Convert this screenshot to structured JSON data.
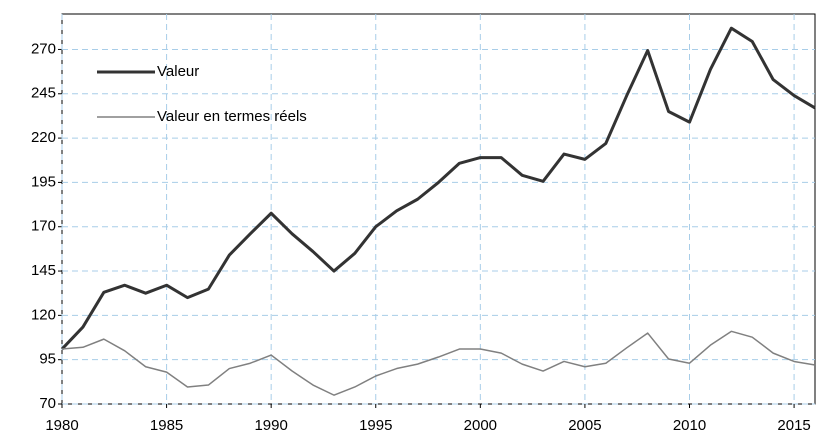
{
  "chart_data": {
    "type": "line",
    "x": [
      1980,
      1981,
      1982,
      1983,
      1984,
      1985,
      1986,
      1987,
      1988,
      1989,
      1990,
      1991,
      1992,
      1993,
      1994,
      1995,
      1996,
      1997,
      1998,
      1999,
      2000,
      2001,
      2002,
      2003,
      2004,
      2005,
      2006,
      2007,
      2008,
      2009,
      2010,
      2011,
      2012,
      2013,
      2014,
      2015,
      2016
    ],
    "series": [
      {
        "name": "Valeur",
        "color": "#333333",
        "width": 3,
        "values": [
          101,
          113.4,
          133,
          137,
          132.5,
          137,
          130,
          134.8,
          154,
          166,
          177.6,
          166,
          156,
          145,
          155,
          170,
          179,
          185.5,
          195,
          205.8,
          209,
          209,
          199,
          195.6,
          211,
          208,
          217,
          244,
          269.4,
          235,
          229,
          258.7,
          282,
          274.5,
          253,
          244,
          237
        ]
      },
      {
        "name": "Valeur en termes réels",
        "color": "#808080",
        "width": 1.5,
        "values": [
          101,
          102,
          106.6,
          100,
          91,
          88,
          79.6,
          80.7,
          90,
          93,
          97.6,
          88.6,
          80.7,
          75,
          79.6,
          85.8,
          90,
          92.5,
          96.5,
          101,
          101,
          98.7,
          92.5,
          88.6,
          94,
          91,
          93,
          101.7,
          110,
          95.4,
          93,
          103.2,
          111,
          107.7,
          98.7,
          94,
          92
        ]
      }
    ],
    "xlim": [
      1980,
      2016
    ],
    "xticks": [
      1980,
      1985,
      1990,
      1995,
      2000,
      2005,
      2010,
      2015
    ],
    "ylim": [
      70,
      290
    ],
    "yticks": [
      70,
      95,
      120,
      145,
      170,
      195,
      220,
      245,
      270
    ],
    "grid": true,
    "legend": "upper-left"
  }
}
